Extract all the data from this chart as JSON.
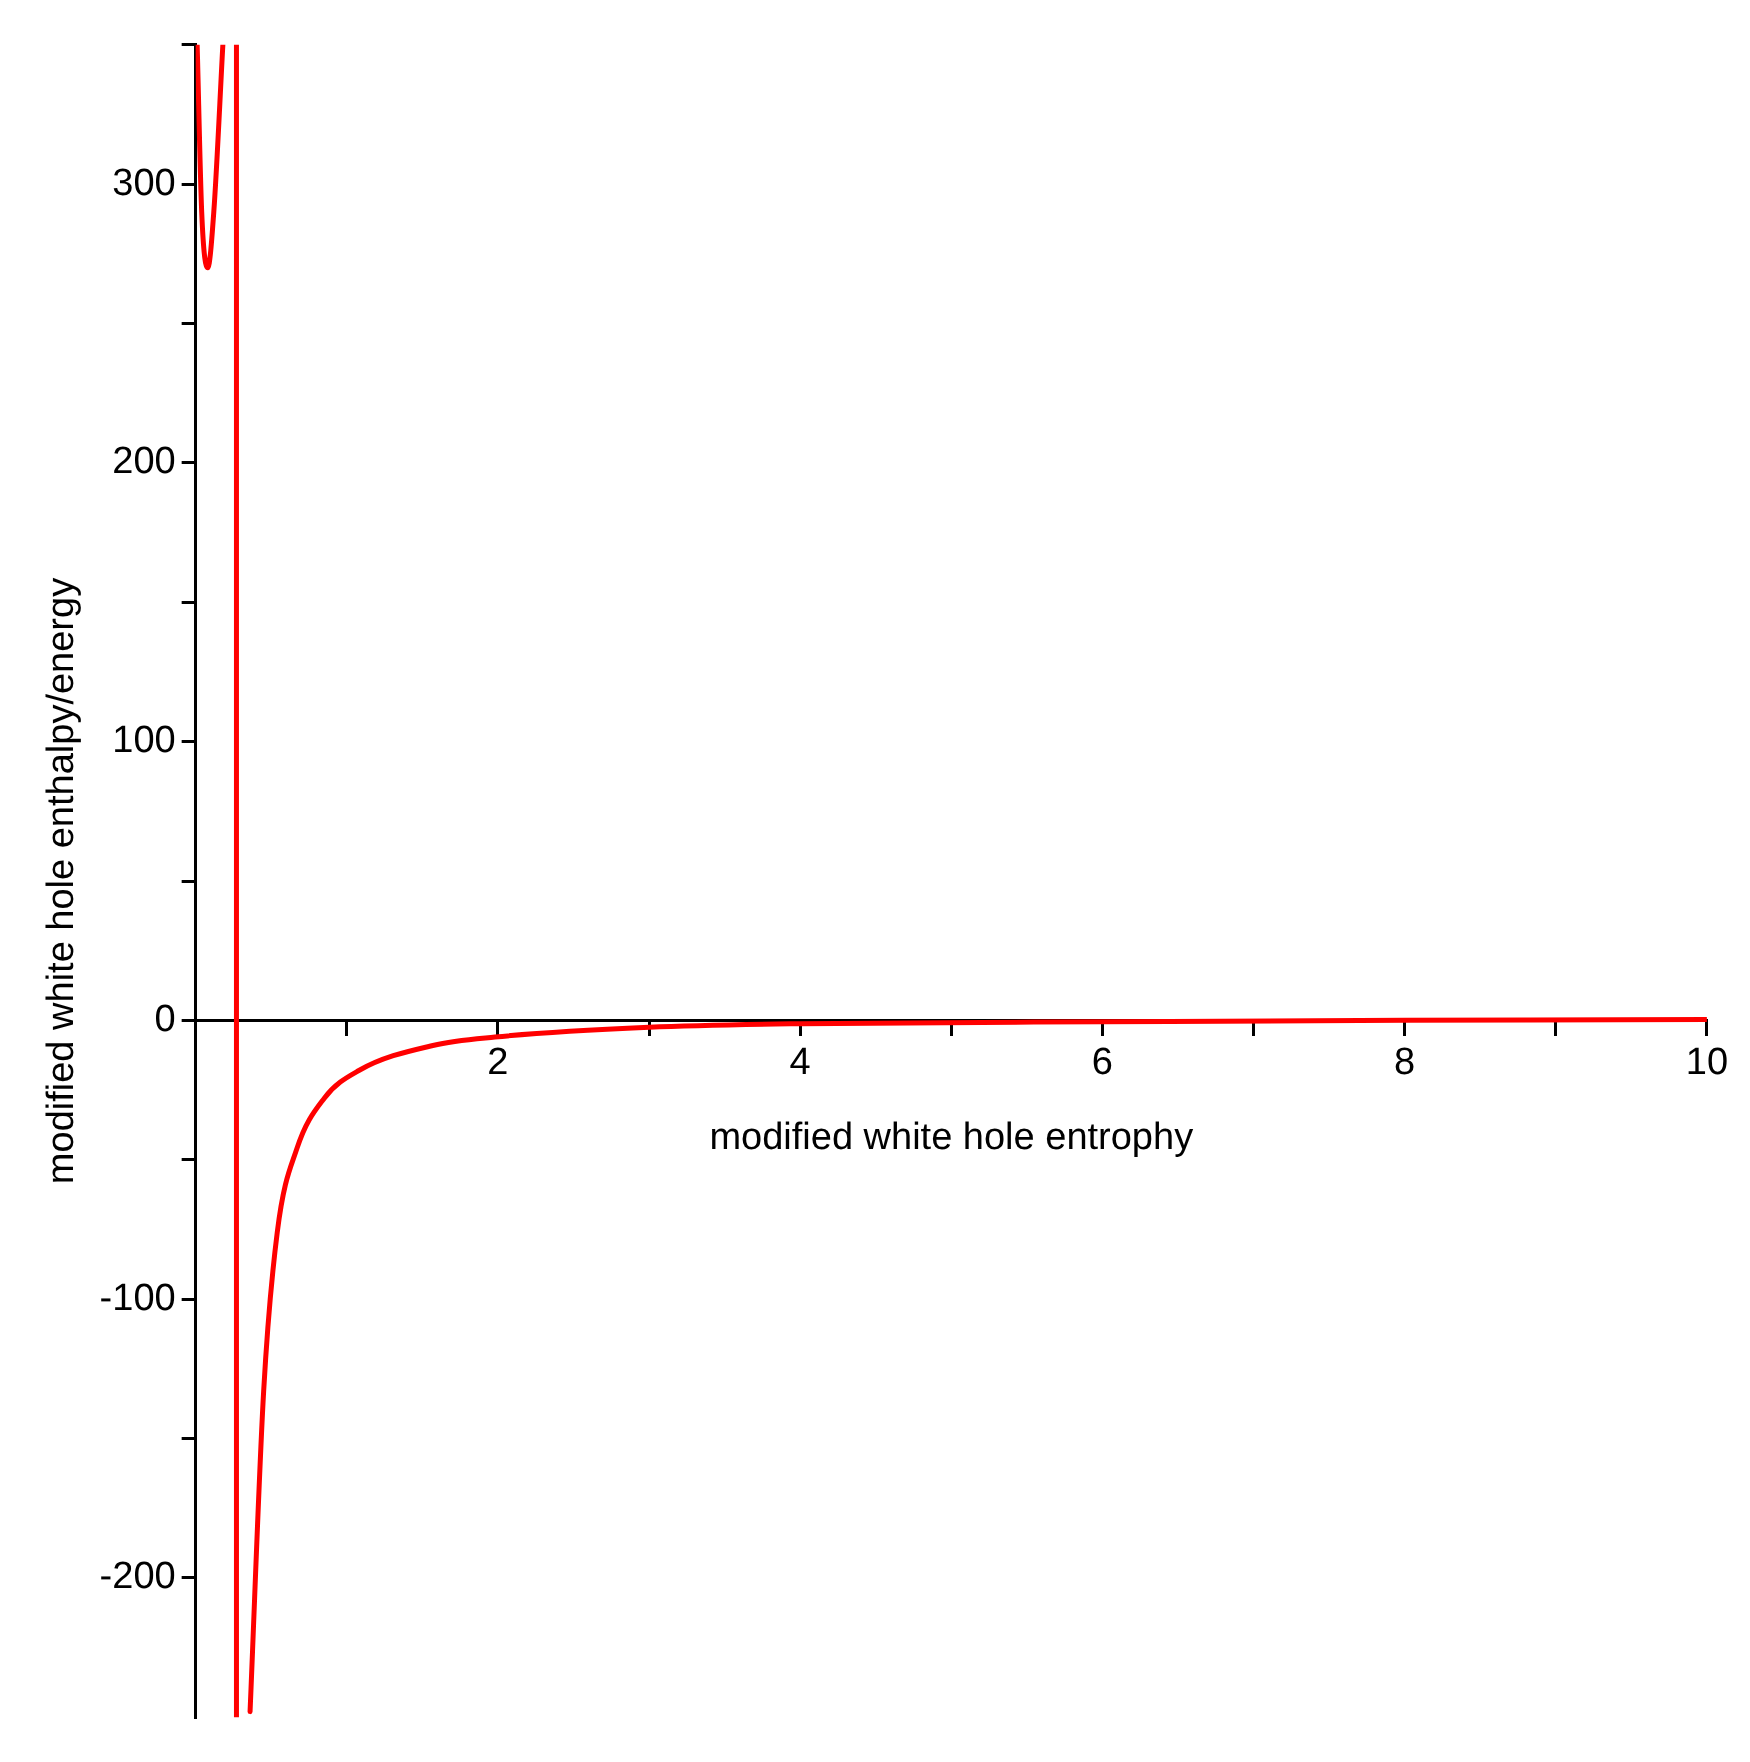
{
  "chart_data": {
    "type": "line",
    "xlabel": "modified white hole entrophy",
    "ylabel": "modified white hole enthalpy/energy",
    "xlim": [
      0,
      10
    ],
    "ylim": [
      -250,
      350
    ],
    "xticks": [
      {
        "value": 1,
        "label": null
      },
      2,
      {
        "value": 3,
        "label": null
      },
      4,
      {
        "value": 5,
        "label": null
      },
      6,
      {
        "value": 7,
        "label": null
      },
      8,
      {
        "value": 9,
        "label": null
      },
      10
    ],
    "yticks": [
      -200,
      {
        "value": -150,
        "label": null
      },
      -100,
      {
        "value": -50,
        "label": null
      },
      0,
      {
        "value": 50,
        "label": null
      },
      100,
      {
        "value": 150,
        "label": null
      },
      200,
      {
        "value": 250,
        "label": null
      },
      300,
      {
        "value": 350,
        "label": null
      }
    ],
    "series": [
      {
        "color": "#ff0000",
        "x": [
          0.01,
          0.04,
          0.08,
          0.12,
          0.18,
          0.22,
          0.27,
          0.27,
          0.31,
          0.36,
          0.45,
          0.54,
          0.67,
          0.85,
          1.08,
          1.57,
          1.98,
          3,
          4,
          6,
          8,
          10
        ],
        "values": [
          350,
          290,
          270,
          290,
          350,
          null,
          350,
          -250,
          null,
          -248,
          -133,
          -76,
          -46,
          -28,
          -18,
          -9,
          -6,
          -2.5,
          -1.2,
          -0.5,
          0,
          0.3
        ]
      }
    ],
    "grid": false,
    "legend": false,
    "marker": "none",
    "line_style": "solid"
  }
}
